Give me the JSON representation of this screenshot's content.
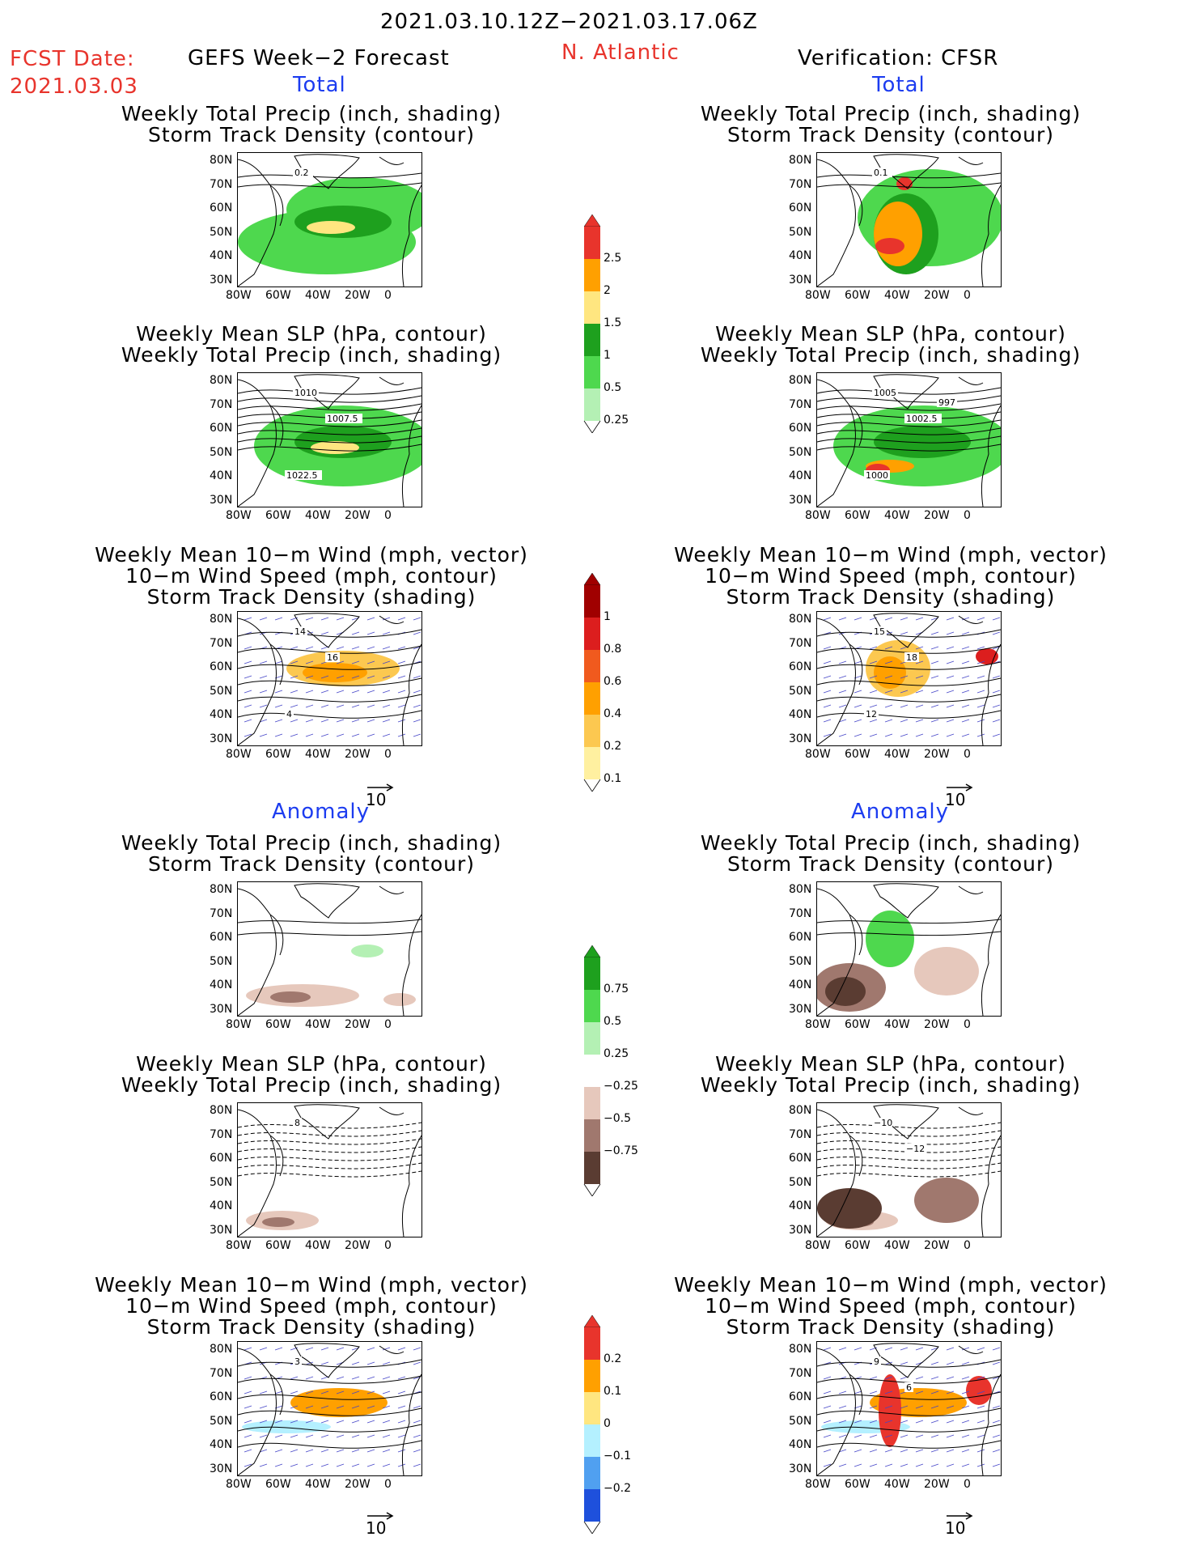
{
  "header": {
    "period": "2021.03.10.12Z−2021.03.17.06Z",
    "fcst_label": "FCST Date:",
    "fcst_date": "2021.03.03",
    "model": "GEFS Week−2 Forecast",
    "region": "N. Atlantic",
    "verification": "Verification: CFSR",
    "total_label": "Total",
    "anomaly_label": "Anomaly"
  },
  "axes": {
    "lat_ticks": [
      "80N",
      "70N",
      "60N",
      "50N",
      "40N",
      "30N"
    ],
    "lon_ticks": [
      "80W",
      "60W",
      "40W",
      "20W",
      "0"
    ]
  },
  "panel_titles": {
    "precip_track": [
      "Weekly Total Precip (inch, shading)",
      "Storm Track Density (contour)"
    ],
    "slp_precip": [
      "Weekly Mean SLP (hPa, contour)",
      "Weekly Total Precip (inch, shading)"
    ],
    "wind_track": [
      "Weekly Mean 10−m Wind (mph, vector)",
      "10−m Wind Speed (mph, contour)",
      "Storm Track Density (shading)"
    ]
  },
  "contour_labels": {
    "fc_total_precip": [
      "0.2"
    ],
    "fc_total_slp": [
      "1010",
      "1007.5",
      "1022.5"
    ],
    "fc_total_wind": [
      "14",
      "16",
      "4"
    ],
    "ver_total_precip": [
      "0.1"
    ],
    "ver_total_slp": [
      "1005",
      "1002.5",
      "1000",
      "997"
    ],
    "ver_total_wind": [
      "15",
      "18",
      "12"
    ],
    "fc_anom_slp": [
      "8"
    ],
    "fc_anom_wind": [
      "3"
    ],
    "ver_anom_slp": [
      "−10",
      "−12"
    ],
    "ver_anom_wind": [
      "9",
      "6"
    ]
  },
  "vector_ref": "10",
  "colorbars": {
    "precip_total": {
      "labels": [
        "2.5",
        "2",
        "1.5",
        "1",
        "0.5",
        "0.25"
      ],
      "colors": [
        "#e8342c",
        "#ffa000",
        "#ffe680",
        "#1ea01e",
        "#4ed84e",
        "#b4f0b4"
      ]
    },
    "track_total": {
      "labels": [
        "1",
        "0.8",
        "0.6",
        "0.4",
        "0.2",
        "0.1"
      ],
      "colors": [
        "#a00000",
        "#dc1e1e",
        "#f05a1e",
        "#ffa000",
        "#fcc850",
        "#fff0a0"
      ]
    },
    "precip_anom": {
      "labels": [
        "0.75",
        "0.5",
        "0.25",
        "−0.25",
        "−0.5",
        "−0.75"
      ],
      "colors": [
        "#1ea01e",
        "#4ed84e",
        "#b4f0b4",
        "#ffffff",
        "#e6c8bc",
        "#a0786e",
        "#5a3c32"
      ]
    },
    "track_anom": {
      "labels": [
        "0.2",
        "0.1",
        "0",
        "−0.1",
        "−0.2"
      ],
      "colors": [
        "#e8342c",
        "#ffa000",
        "#ffe680",
        "#b4f0ff",
        "#50a0f0",
        "#1e50dc"
      ]
    }
  }
}
